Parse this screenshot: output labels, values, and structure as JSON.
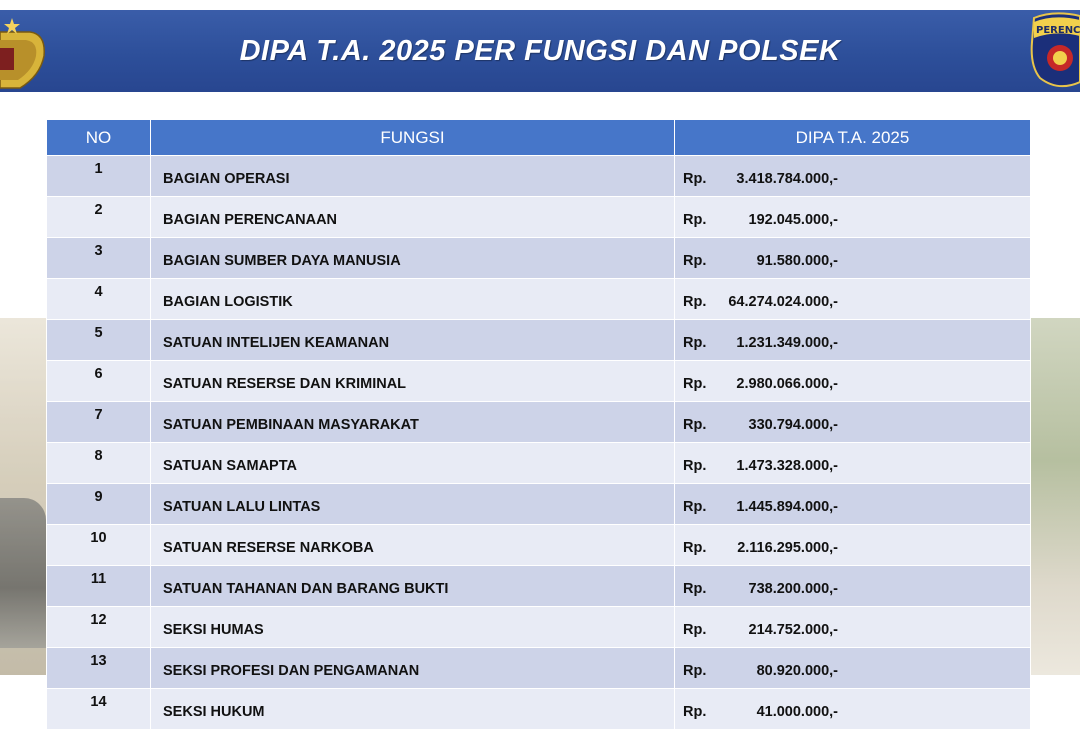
{
  "header": {
    "title": "DIPA T.A. 2025 PER FUNGSI DAN POLSEK",
    "logo_right_text": "PERENCANAAN"
  },
  "colors": {
    "header_blue": "#2d4f9a",
    "table_header": "#4676c9",
    "row_dark": "#cdd3e8",
    "row_light": "#e8ebf5"
  },
  "table": {
    "columns": [
      "NO",
      "FUNGSI",
      "DIPA T.A. 2025"
    ],
    "rows": [
      {
        "no": "1",
        "fungsi": "BAGIAN OPERASI",
        "rp": "Rp.",
        "amount": "3.418.784.000,-"
      },
      {
        "no": "2",
        "fungsi": "BAGIAN PERENCANAAN",
        "rp": "Rp.",
        "amount": "192.045.000,-"
      },
      {
        "no": "3",
        "fungsi": "BAGIAN SUMBER DAYA MANUSIA",
        "rp": "Rp.",
        "amount": "91.580.000,-"
      },
      {
        "no": "4",
        "fungsi": "BAGIAN LOGISTIK",
        "rp": "Rp.",
        "amount": "64.274.024.000,-"
      },
      {
        "no": "5",
        "fungsi": "SATUAN INTELIJEN KEAMANAN",
        "rp": "Rp.",
        "amount": "1.231.349.000,-"
      },
      {
        "no": "6",
        "fungsi": "SATUAN RESERSE DAN KRIMINAL",
        "rp": "Rp.",
        "amount": "2.980.066.000,-"
      },
      {
        "no": "7",
        "fungsi": "SATUAN PEMBINAAN MASYARAKAT",
        "rp": "Rp.",
        "amount": "330.794.000,-"
      },
      {
        "no": "8",
        "fungsi": "SATUAN SAMAPTA",
        "rp": "Rp.",
        "amount": "1.473.328.000,-"
      },
      {
        "no": "9",
        "fungsi": "SATUAN LALU LINTAS",
        "rp": "Rp.",
        "amount": "1.445.894.000,-"
      },
      {
        "no": "10",
        "fungsi": "SATUAN RESERSE NARKOBA",
        "rp": "Rp.",
        "amount": "2.116.295.000,-"
      },
      {
        "no": "11",
        "fungsi": "SATUAN TAHANAN DAN BARANG BUKTI",
        "rp": "Rp.",
        "amount": "738.200.000,-"
      },
      {
        "no": "12",
        "fungsi": "SEKSI HUMAS",
        "rp": "Rp.",
        "amount": "214.752.000,-"
      },
      {
        "no": "13",
        "fungsi": "SEKSI PROFESI DAN PENGAMANAN",
        "rp": "Rp.",
        "amount": "80.920.000,-"
      },
      {
        "no": "14",
        "fungsi": "SEKSI HUKUM",
        "rp": "Rp.",
        "amount": "41.000.000,-"
      }
    ]
  }
}
